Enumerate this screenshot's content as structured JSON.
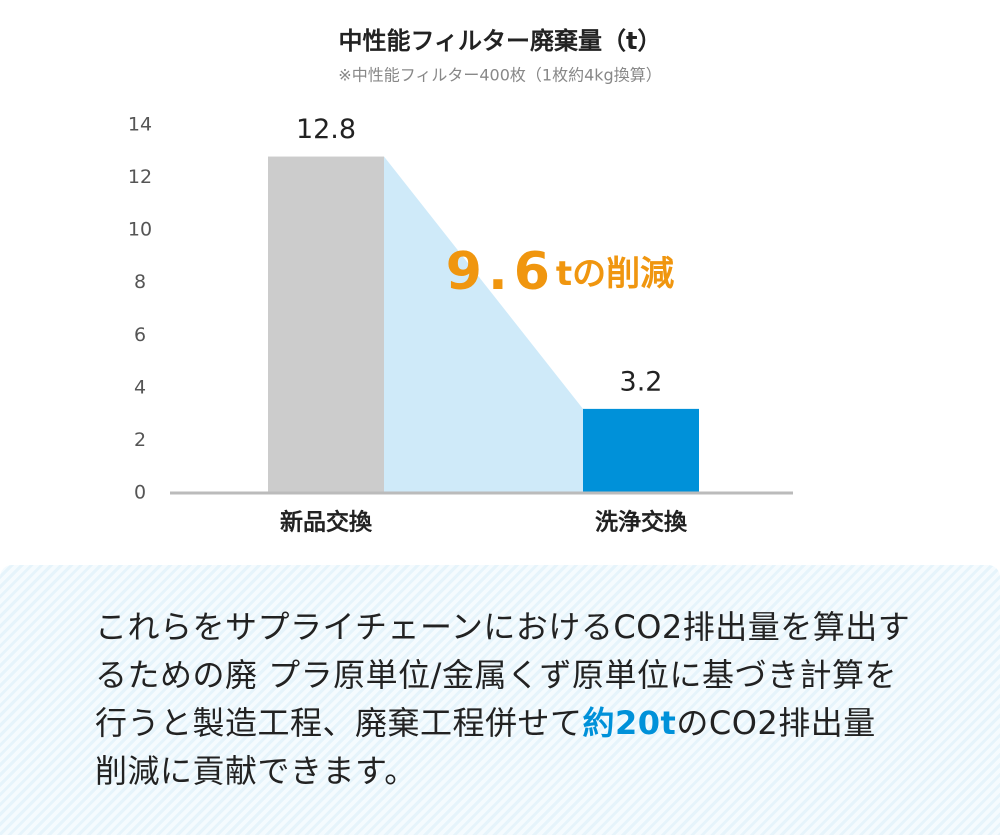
{
  "chart_data": {
    "type": "bar",
    "title": "中性能フィルター廃棄量（t）",
    "subtitle": "※中性能フィルター400枚（1枚約4kg換算）",
    "categories": [
      "新品交換",
      "洗浄交換"
    ],
    "values": [
      12.8,
      3.2
    ],
    "colors": [
      "#cccccc",
      "#0091d9"
    ],
    "ylim": [
      0,
      14
    ],
    "yticks": [
      0,
      2,
      4,
      6,
      8,
      10,
      12,
      14
    ],
    "annotation": [
      "9.6",
      "tの削減"
    ],
    "annotation_color": "#f0960f",
    "reduction_fill": "#cfeaf9"
  },
  "footnote": {
    "parts": [
      {
        "text": "これらをサプライチェーンにおけるCO2排出量を算出す\nるための廃 プラ原単位/金属くず原単位に基づき計算を\n行うと製造工程、廃棄工程併せて"
      },
      {
        "text": "約20t",
        "highlight": true
      },
      {
        "text": "のCO2排出量\n削減に貢献できます。"
      }
    ],
    "highlight_color": "#0091d9"
  }
}
